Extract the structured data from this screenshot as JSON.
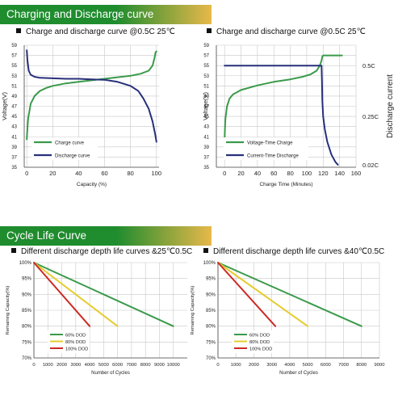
{
  "colors": {
    "green": "#3a9a4a",
    "navy": "#27307a",
    "yellow": "#e6cc2e",
    "red": "#cc2a24",
    "grid": "#c8c8c8",
    "header_start": "#1f8c2e",
    "header_end": "#e8b84a"
  },
  "section1": {
    "title": "Charging and Discharge curve"
  },
  "section2": {
    "title": "Cycle Life Curve"
  },
  "chart_data": [
    {
      "type": "line",
      "title": "Charge and discharge curve @0.5C 25℃",
      "xlabel": "Capacity (%)",
      "ylabel": "Voltage(V)",
      "xlim": [
        -2,
        102
      ],
      "ylim": [
        35,
        59
      ],
      "xticks": [
        0,
        20,
        40,
        60,
        80,
        100
      ],
      "yticks": [
        35,
        37,
        39,
        41,
        43,
        45,
        47,
        49,
        51,
        53,
        55,
        57,
        59
      ],
      "series": [
        {
          "name": "Charge curve",
          "color": "green",
          "x": [
            0,
            0.3,
            1,
            3,
            6,
            10,
            15,
            20,
            30,
            40,
            50,
            60,
            70,
            80,
            88,
            94,
            97,
            98.5,
            99.3,
            100
          ],
          "y": [
            40.5,
            42,
            44.5,
            47.5,
            49,
            50,
            50.6,
            51,
            51.5,
            51.8,
            52.1,
            52.4,
            52.7,
            53,
            53.4,
            54,
            55,
            56.5,
            57.6,
            57.8
          ]
        },
        {
          "name": "Discharge curve",
          "color": "navy",
          "x": [
            0,
            0.5,
            1.5,
            3,
            6,
            10,
            20,
            30,
            40,
            50,
            60,
            70,
            80,
            86,
            90,
            94,
            97,
            99,
            100
          ],
          "y": [
            58,
            56,
            54,
            53.2,
            52.8,
            52.6,
            52.5,
            52.4,
            52.4,
            52.3,
            52.2,
            51.8,
            51,
            50,
            48.5,
            46.5,
            44,
            41.5,
            40
          ]
        }
      ],
      "legend": "bottom-left"
    },
    {
      "type": "line",
      "title": "Charge and discharge curve @0.5C 25℃",
      "xlabel": "Charge Time (Minutes)",
      "ylabel": "Voltage(V)",
      "y2label": "Discharge current",
      "xlim": [
        -10,
        160
      ],
      "ylim": [
        35,
        59
      ],
      "xticks": [
        0,
        20,
        40,
        60,
        80,
        100,
        120,
        140,
        160
      ],
      "yticks": [
        35,
        37,
        39,
        41,
        43,
        45,
        47,
        49,
        51,
        53,
        55,
        57,
        59
      ],
      "y2ticks": [
        {
          "label": "0.5C",
          "v": 55
        },
        {
          "label": "0.25C",
          "v": 45
        },
        {
          "label": "0.02C",
          "v": 35.5
        }
      ],
      "series": [
        {
          "name": "Voltage-Time Charge",
          "color": "green",
          "x": [
            0,
            0.3,
            1,
            3,
            6,
            10,
            20,
            40,
            60,
            80,
            95,
            105,
            112,
            116,
            118,
            119,
            120,
            122,
            125,
            135,
            143
          ],
          "y": [
            40,
            42,
            44.5,
            47,
            48.5,
            49.3,
            50.2,
            51.1,
            51.8,
            52.3,
            52.8,
            53.3,
            54,
            55,
            56,
            56.8,
            57,
            57,
            57,
            57,
            57
          ]
        },
        {
          "name": "Current-Time Discharge",
          "color": "navy",
          "x": [
            0,
            30,
            60,
            90,
            118,
            118.5,
            119,
            120,
            122,
            125,
            130,
            135,
            138
          ],
          "y": [
            55,
            55,
            55,
            55,
            55,
            52,
            48,
            45,
            42.5,
            40,
            37.5,
            36,
            35.5
          ]
        }
      ],
      "legend": "bottom-left"
    },
    {
      "type": "line",
      "title": "Different discharge depth life curves &25℃0.5C",
      "xlabel": "Number of Cycles",
      "ylabel": "Remaining Capacity(%)",
      "xlim": [
        0,
        11000
      ],
      "ylim": [
        70,
        100
      ],
      "xticks": [
        0,
        1000,
        2000,
        3000,
        4000,
        5000,
        6000,
        7000,
        8000,
        9000,
        10000
      ],
      "ytick_labels": [
        "70%",
        "75%",
        "80%",
        "85%",
        "90%",
        "95%",
        "100%"
      ],
      "series": [
        {
          "name": "60% DOD",
          "color": "green",
          "x": [
            0,
            10000
          ],
          "y": [
            100,
            80
          ]
        },
        {
          "name": "80% DOD",
          "color": "yellow",
          "x": [
            0,
            6000
          ],
          "y": [
            100,
            80
          ]
        },
        {
          "name": "100% DOD",
          "color": "red",
          "x": [
            0,
            4000
          ],
          "y": [
            100,
            80
          ]
        }
      ],
      "legend": "bottom-left"
    },
    {
      "type": "line",
      "title": "Different discharge depth life curves &40℃0.5C",
      "xlabel": "Number of Cycles",
      "ylabel": "Remaining Capacity(%)",
      "xlim": [
        0,
        9000
      ],
      "ylim": [
        70,
        100
      ],
      "xticks": [
        0,
        1000,
        2000,
        3000,
        4000,
        5000,
        6000,
        7000,
        8000,
        9000
      ],
      "ytick_labels": [
        "70%",
        "75%",
        "80%",
        "85%",
        "90%",
        "95%",
        "100%"
      ],
      "series": [
        {
          "name": "60% DOD",
          "color": "green",
          "x": [
            0,
            8000
          ],
          "y": [
            100,
            80
          ]
        },
        {
          "name": "80% DOD",
          "color": "yellow",
          "x": [
            0,
            5000
          ],
          "y": [
            100,
            80
          ]
        },
        {
          "name": "100% DOD",
          "color": "red",
          "x": [
            0,
            3200
          ],
          "y": [
            100,
            80
          ]
        }
      ],
      "legend": "bottom-left"
    }
  ]
}
